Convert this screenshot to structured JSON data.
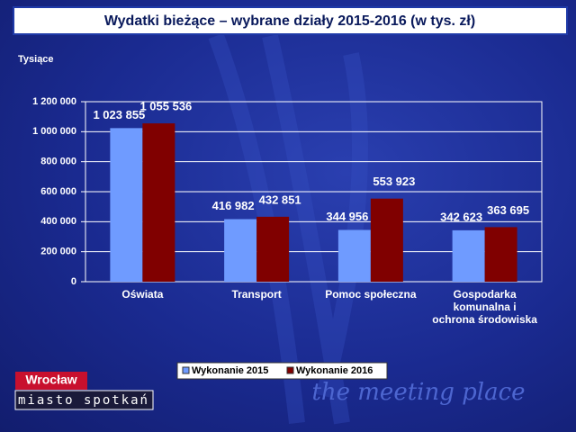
{
  "chart_data": {
    "type": "bar",
    "title": "Wydatki bieżące – wybrane działy 2015-2016 (w tys. zł)",
    "y_label": "Tysiące",
    "categories": [
      "Oświata",
      "Transport",
      "Pomoc społeczna",
      "Gospodarka komunalna i ochrona środowiska"
    ],
    "series": [
      {
        "name": "Wykonanie 2015",
        "color": "#6f9bff",
        "values": [
          1023855,
          416982,
          344956,
          342623
        ],
        "value_labels": [
          "1 023 855",
          "416 982",
          "344 956",
          "342 623"
        ]
      },
      {
        "name": "Wykonanie 2016",
        "color": "#800000",
        "values": [
          1055536,
          432851,
          553923,
          363695
        ],
        "value_labels": [
          "1 055 536",
          "432 851",
          "553 923",
          "363 695"
        ]
      }
    ],
    "ylim": [
      0,
      1200000
    ],
    "yticks": [
      0,
      {
        "value": 200000,
        "label": "200 000"
      },
      {
        "value": 400000,
        "label": "400 000"
      },
      {
        "value": 600000,
        "label": "600 000"
      },
      {
        "value": 800000,
        "label": "800 000"
      },
      {
        "value": 1000000,
        "label": "1 000 000"
      },
      {
        "value": 1200000,
        "label": "1 200 000"
      }
    ],
    "grid": true,
    "legend": "bottom"
  },
  "branding": {
    "logo": "Wrocław",
    "slogan": "miasto spotkań",
    "tagline": "the meeting place"
  }
}
